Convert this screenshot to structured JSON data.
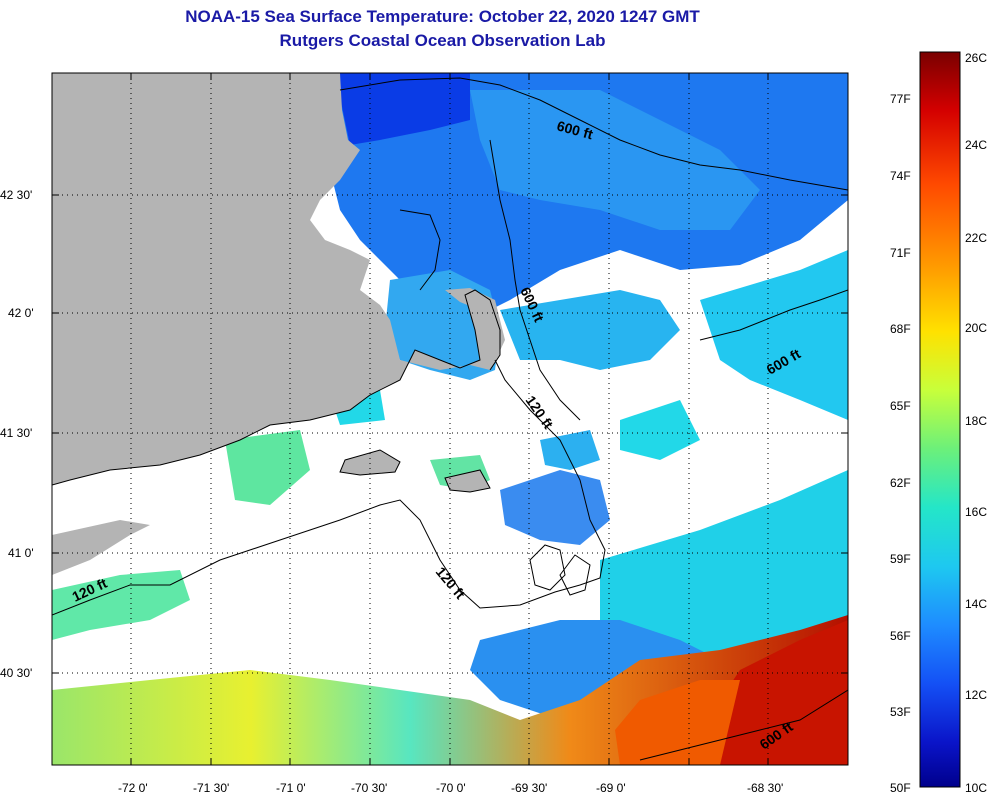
{
  "title": {
    "line1": "NOAA-15 Sea Surface Temperature:  October 22, 2020 1247 GMT",
    "line2": "Rutgers Coastal Ocean Observation Lab"
  },
  "map": {
    "lon_labels": [
      "-72 0'",
      "-71 30'",
      "-71 0'",
      "-70 30'",
      "-70 0'",
      "-69 30'",
      "-69 0'",
      "-68 30'"
    ],
    "lat_labels": [
      "42 30'",
      "42 0'",
      "41 30'",
      "41 0'",
      "40 30'"
    ],
    "contour_labels": [
      "600 ft",
      "600 ft",
      "600 ft",
      "600 ft",
      "120 ft",
      "120 ft",
      "120 ft"
    ],
    "colors": {
      "land": "#b4b4b4",
      "cloud": "#ffffff",
      "contour": "#000000"
    }
  },
  "colorbar": {
    "celsius_labels": [
      "26C",
      "24C",
      "22C",
      "20C",
      "18C",
      "16C",
      "14C",
      "12C",
      "10C"
    ],
    "fahrenheit_labels": [
      "77F",
      "74F",
      "71F",
      "68F",
      "65F",
      "62F",
      "59F",
      "56F",
      "53F",
      "50F"
    ],
    "gradient_colors": [
      "#7a0000",
      "#d40000",
      "#ff4a00",
      "#ff9900",
      "#ffe100",
      "#c8ff3a",
      "#6cf07a",
      "#24e6c8",
      "#1ec8f0",
      "#1e8cff",
      "#1450f5",
      "#0a14c8",
      "#00008c"
    ]
  }
}
